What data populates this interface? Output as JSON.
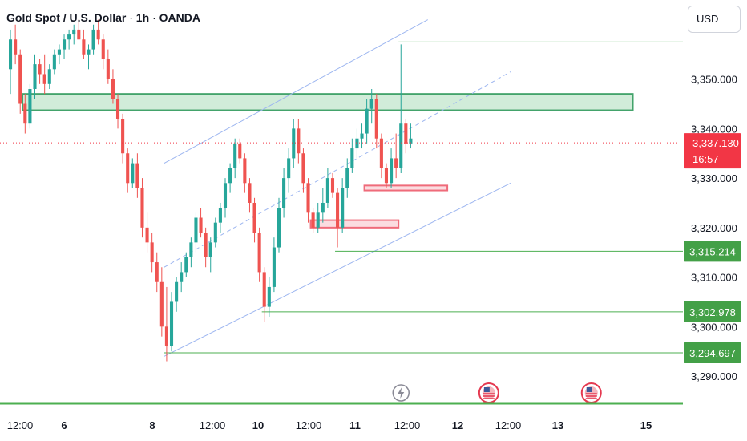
{
  "header": {
    "symbol_title": "Gold Spot / U.S. Dollar",
    "interval": "1h",
    "source": "OANDA",
    "separator": "·"
  },
  "currency_button": {
    "label": "USD"
  },
  "colors": {
    "up": "#26a69a",
    "down": "#ef5350",
    "channel": "#9db6f0",
    "support_line": "#4caf50",
    "zone_fill": "#d1ecd9",
    "zone_border": "#43a36b",
    "demand_fill": "#fbdce0",
    "demand_border": "#ef6b7a",
    "price_badge": "#f23645",
    "level_badge": "#43a047",
    "event_red": "#e53950",
    "event_gray": "#8a8a96"
  },
  "chart_data": {
    "type": "candlestick",
    "title": "Gold Spot / U.S. Dollar · 1h · OANDA",
    "y_axis": {
      "ticks": [
        3350,
        3340,
        3330,
        3320,
        3310,
        3300,
        3290
      ],
      "tick_labels": [
        "3,350.000",
        "3,340.000",
        "3,330.000",
        "3,320.000",
        "3,310.000",
        "3,300.000",
        "3,290.000"
      ],
      "range": [
        3284.5,
        3359.5
      ],
      "position": "right"
    },
    "x_axis": {
      "labels": [
        "12:00",
        "6",
        "8",
        "12:00",
        "10",
        "12:00",
        "11",
        "12:00",
        "12",
        "12:00",
        "13",
        "15"
      ],
      "bold": [
        false,
        true,
        true,
        false,
        true,
        false,
        true,
        false,
        true,
        false,
        true,
        true
      ],
      "range_bars": [
        0,
        133
      ]
    },
    "current_price": {
      "value": 3337.13,
      "label": "3,337.130",
      "countdown": "16:57"
    },
    "price_levels": [
      {
        "value": 3357.5,
        "from_bar": 80
      },
      {
        "value": 3315.214,
        "label": "3,315.214",
        "from_bar": 67
      },
      {
        "value": 3302.978,
        "label": "3,302.978",
        "from_bar": 52
      },
      {
        "value": 3294.697,
        "label": "3,294.697",
        "from_bar": 32
      }
    ],
    "resistance_zone": {
      "from_bar": 0,
      "to_bar": 128,
      "low": 3343.7,
      "high": 3347.0
    },
    "demand_zones": [
      {
        "from_bar": 73,
        "to_bar": 90,
        "low": 3327.5,
        "high": 3328.5
      },
      {
        "from_bar": 62,
        "to_bar": 80,
        "low": 3320.0,
        "high": 3321.5
      }
    ],
    "channel_lines": [
      {
        "x1": 32,
        "y1": 3294.0,
        "x2": 103,
        "y2": 3329.0,
        "style": "solid"
      },
      {
        "x1": 32,
        "y1": 3312.0,
        "x2": 103,
        "y2": 3351.5,
        "style": "dashed"
      },
      {
        "x1": 32,
        "y1": 3333.0,
        "x2": 86,
        "y2": 3362.0,
        "style": "solid"
      }
    ],
    "events": [
      {
        "type": "lightning",
        "bar": 80
      },
      {
        "type": "us-flag",
        "bar": 98
      },
      {
        "type": "us-flag",
        "bar": 119
      }
    ],
    "ohlc": [
      [
        3352,
        3360,
        3347,
        3358
      ],
      [
        3358,
        3361,
        3353,
        3355
      ],
      [
        3355,
        3356,
        3343,
        3345
      ],
      [
        3345,
        3347,
        3339,
        3341
      ],
      [
        3341,
        3349,
        3340,
        3348
      ],
      [
        3348,
        3355,
        3346,
        3353
      ],
      [
        3353,
        3354,
        3349,
        3351
      ],
      [
        3351,
        3355,
        3347,
        3349
      ],
      [
        3349,
        3353,
        3348,
        3352
      ],
      [
        3352,
        3356,
        3351,
        3355
      ],
      [
        3355,
        3357,
        3353,
        3356
      ],
      [
        3356,
        3359,
        3354,
        3358
      ],
      [
        3358,
        3360,
        3356,
        3359
      ],
      [
        3359,
        3361,
        3357,
        3360
      ],
      [
        3360,
        3362,
        3358,
        3358
      ],
      [
        3358,
        3360,
        3354,
        3355
      ],
      [
        3355,
        3357,
        3352,
        3356
      ],
      [
        3356,
        3361,
        3355,
        3360
      ],
      [
        3360,
        3362,
        3357,
        3358
      ],
      [
        3358,
        3359,
        3352,
        3354
      ],
      [
        3354,
        3356,
        3349,
        3350
      ],
      [
        3350,
        3352,
        3345,
        3346
      ],
      [
        3346,
        3347,
        3340,
        3342
      ],
      [
        3342,
        3343,
        3333,
        3335
      ],
      [
        3335,
        3336,
        3327,
        3329
      ],
      [
        3329,
        3334,
        3328,
        3333
      ],
      [
        3333,
        3335,
        3326,
        3328
      ],
      [
        3328,
        3330,
        3318,
        3320
      ],
      [
        3320,
        3323,
        3315,
        3317
      ],
      [
        3317,
        3319,
        3311,
        3313
      ],
      [
        3313,
        3315,
        3307,
        3309
      ],
      [
        3309,
        3312,
        3298,
        3300
      ],
      [
        3300,
        3308,
        3293,
        3296
      ],
      [
        3296,
        3307,
        3295,
        3305
      ],
      [
        3305,
        3310,
        3303,
        3309
      ],
      [
        3309,
        3313,
        3307,
        3311
      ],
      [
        3311,
        3315,
        3310,
        3314
      ],
      [
        3314,
        3318,
        3312,
        3317
      ],
      [
        3317,
        3323,
        3315,
        3322
      ],
      [
        3322,
        3324,
        3318,
        3319
      ],
      [
        3319,
        3320,
        3312,
        3314
      ],
      [
        3314,
        3318,
        3311,
        3317
      ],
      [
        3317,
        3322,
        3316,
        3321
      ],
      [
        3321,
        3325,
        3319,
        3324
      ],
      [
        3324,
        3330,
        3322,
        3329
      ],
      [
        3329,
        3333,
        3327,
        3332
      ],
      [
        3332,
        3338,
        3330,
        3337
      ],
      [
        3337,
        3338,
        3333,
        3334
      ],
      [
        3334,
        3335,
        3327,
        3329
      ],
      [
        3329,
        3330,
        3323,
        3325
      ],
      [
        3325,
        3326,
        3317,
        3319
      ],
      [
        3319,
        3320,
        3309,
        3311
      ],
      [
        3311,
        3312,
        3301,
        3304
      ],
      [
        3304,
        3310,
        3302,
        3308
      ],
      [
        3308,
        3318,
        3307,
        3316
      ],
      [
        3316,
        3326,
        3315,
        3324
      ],
      [
        3324,
        3332,
        3322,
        3330
      ],
      [
        3330,
        3336,
        3327,
        3334
      ],
      [
        3334,
        3342,
        3332,
        3340
      ],
      [
        3340,
        3342,
        3333,
        3335
      ],
      [
        3335,
        3336,
        3327,
        3329
      ],
      [
        3329,
        3330,
        3321,
        3323
      ],
      [
        3323,
        3324,
        3319,
        3320
      ],
      [
        3320,
        3325,
        3319,
        3323
      ],
      [
        3323,
        3328,
        3321,
        3325
      ],
      [
        3325,
        3332,
        3324,
        3330
      ],
      [
        3330,
        3331,
        3326,
        3327
      ],
      [
        3327,
        3328,
        3316,
        3320
      ],
      [
        3320,
        3330,
        3319,
        3328
      ],
      [
        3328,
        3334,
        3326,
        3332
      ],
      [
        3332,
        3338,
        3331,
        3336
      ],
      [
        3336,
        3340,
        3334,
        3338
      ],
      [
        3338,
        3341,
        3336,
        3339
      ],
      [
        3339,
        3346,
        3337,
        3344
      ],
      [
        3344,
        3348,
        3341,
        3346
      ],
      [
        3346,
        3347,
        3336,
        3338
      ],
      [
        3338,
        3339,
        3330,
        3332
      ],
      [
        3332,
        3333,
        3328,
        3329
      ],
      [
        3329,
        3336,
        3328,
        3334
      ],
      [
        3334,
        3339,
        3330,
        3332
      ],
      [
        3332,
        3357,
        3331,
        3341
      ],
      [
        3341,
        3342,
        3335,
        3337
      ],
      [
        3337,
        3341,
        3336,
        3338
      ]
    ]
  }
}
